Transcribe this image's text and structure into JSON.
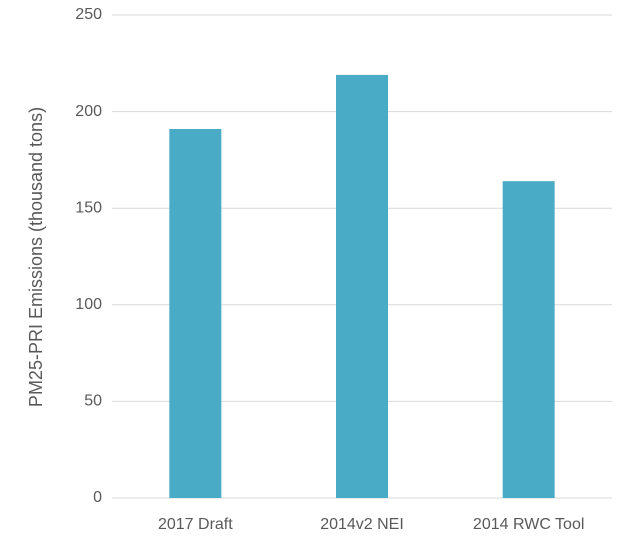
{
  "chart_data": {
    "type": "bar",
    "ylabel": "PM25-PRI Emissions (thousand tons)",
    "categories": [
      "2017 Draft",
      "2014v2 NEI",
      "2014 RWC Tool"
    ],
    "values": [
      191,
      219,
      164
    ],
    "color": "#4aabc6",
    "ylim": [
      0,
      250
    ],
    "yticks": [
      0,
      50,
      100,
      150,
      200,
      250
    ],
    "grid": true
  }
}
